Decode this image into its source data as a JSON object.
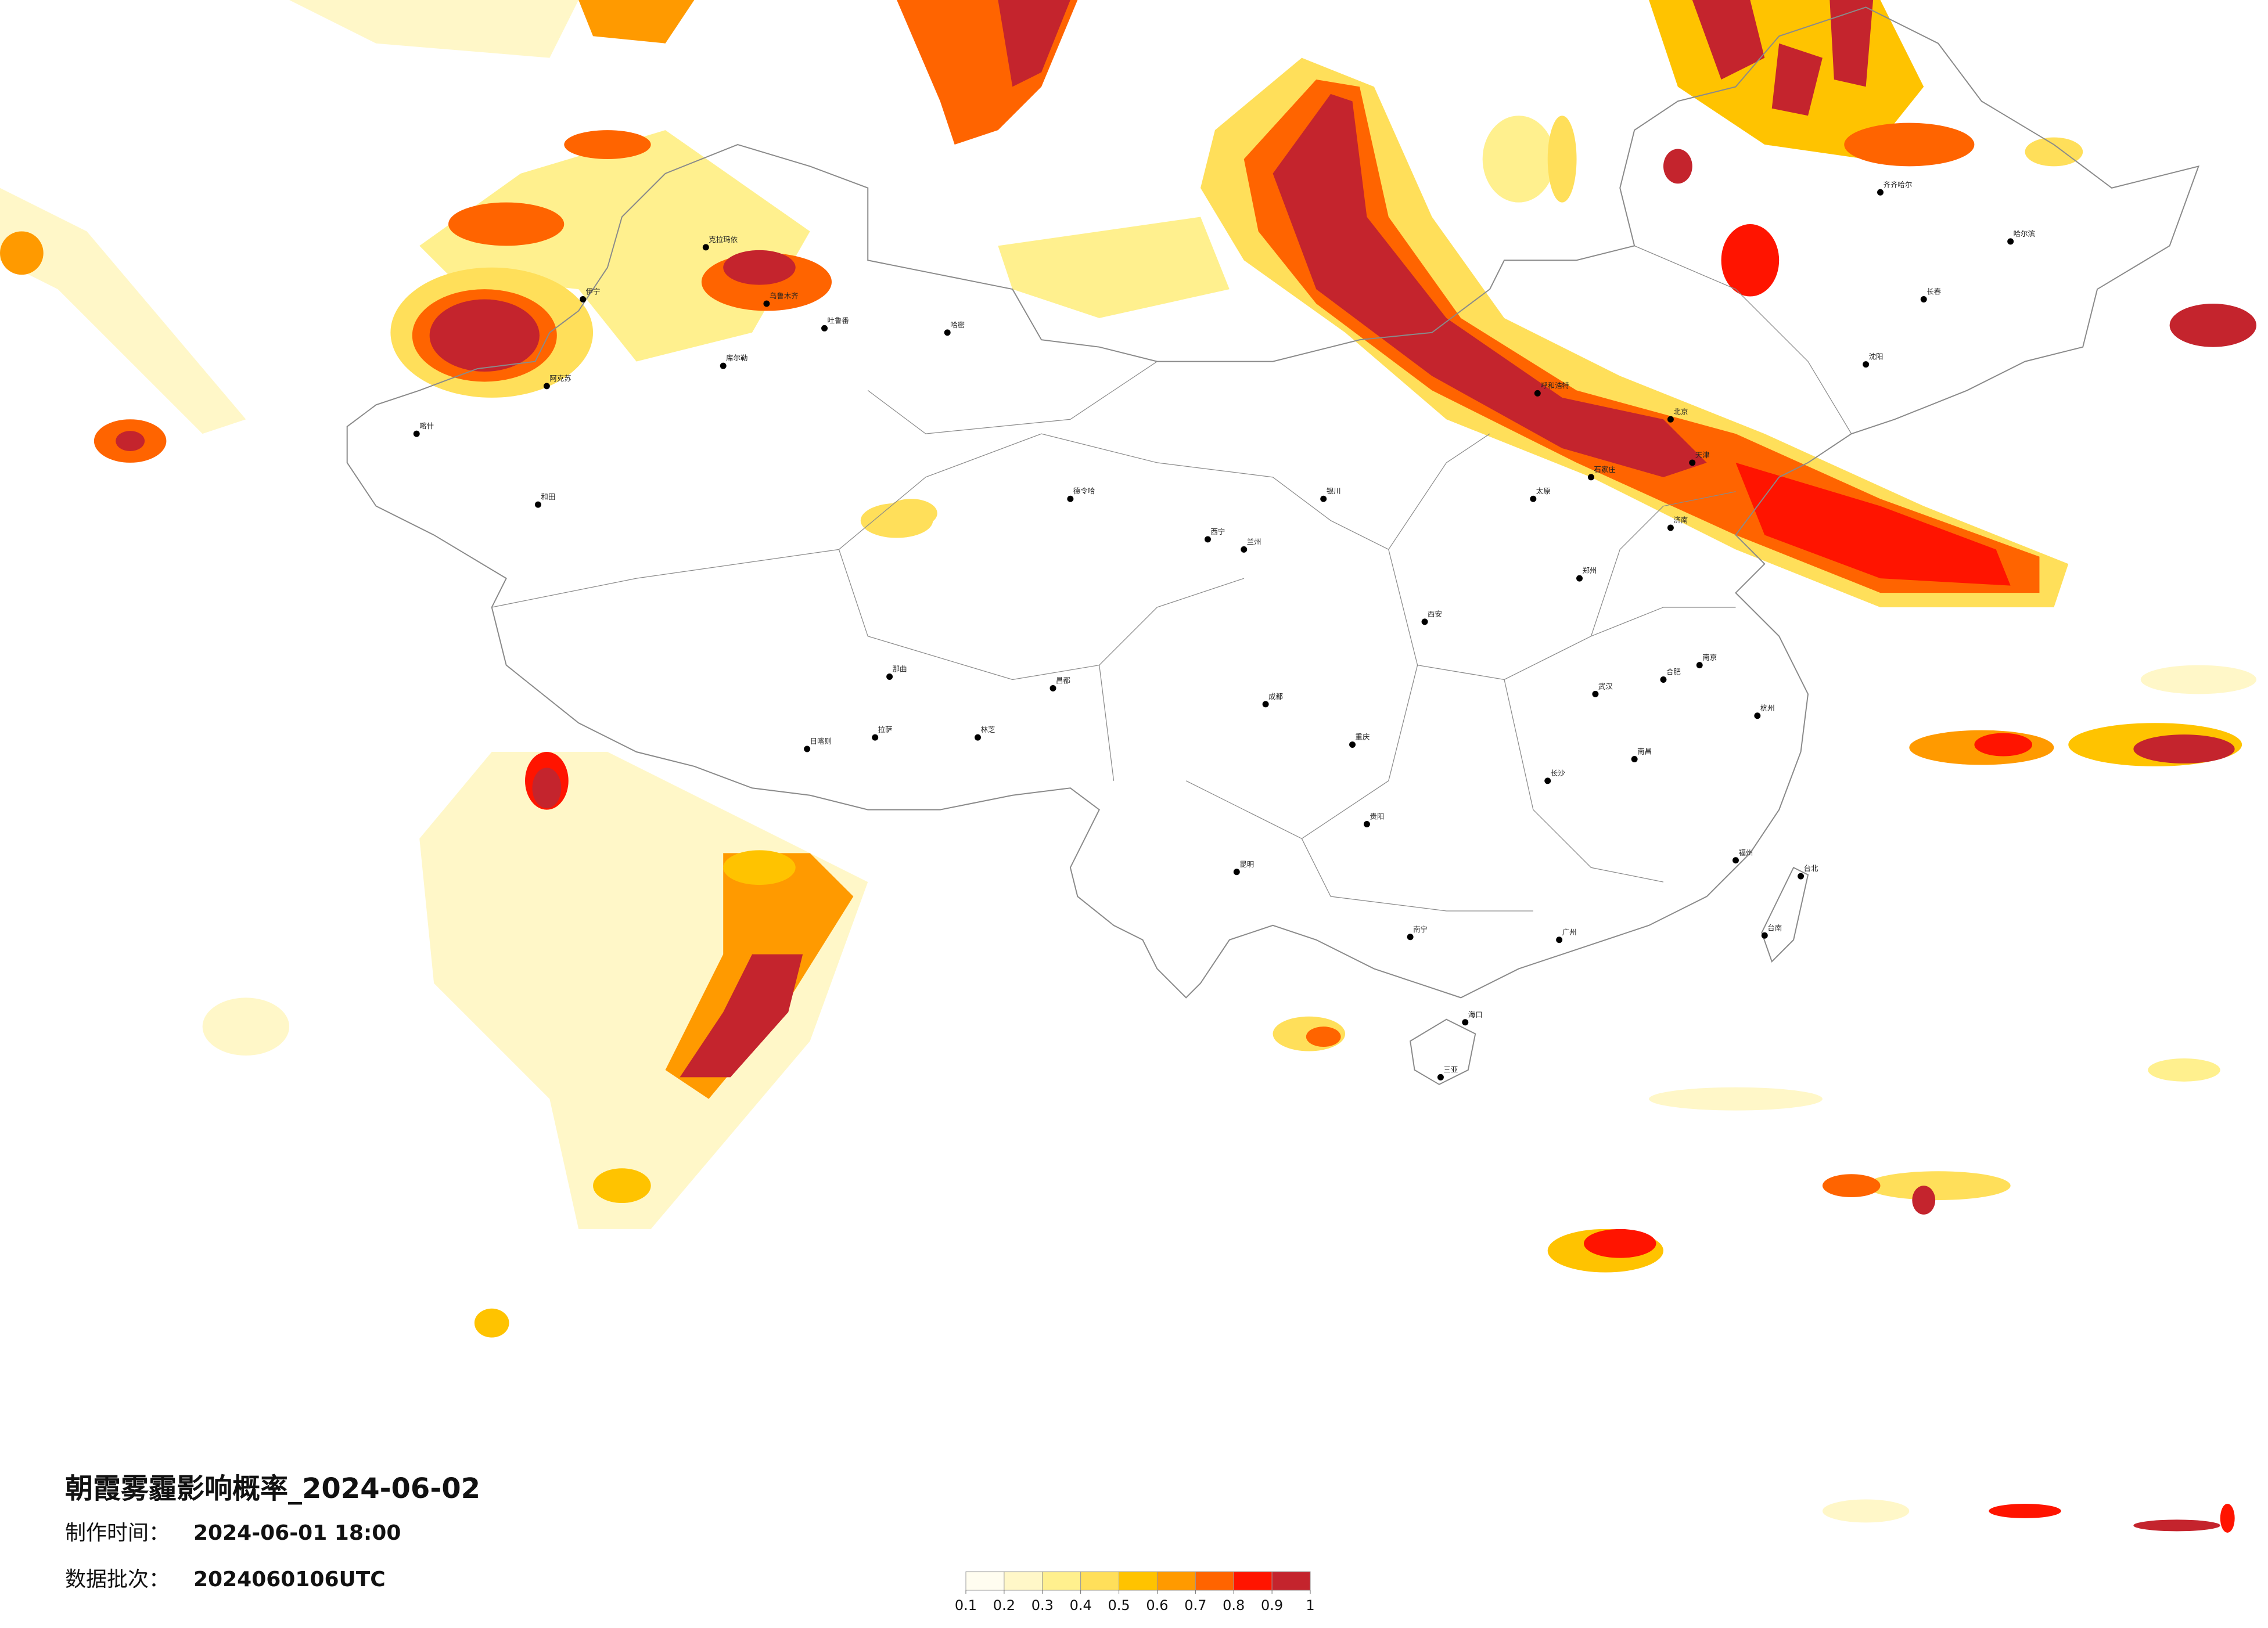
{
  "header": {
    "title": "朝霞雾霾影响概率_2024-06-02",
    "made_time_label": "制作时间：",
    "made_time": "2024-06-01 18:00",
    "batch_label": "数据批次：",
    "batch": "2024060106UTC"
  },
  "legend": {
    "colors": [
      "#fffdf0",
      "#fff7c8",
      "#fff08e",
      "#ffdf5a",
      "#ffc300",
      "#ff9a00",
      "#ff6400",
      "#ff1400",
      "#c4242d"
    ],
    "ticks": [
      0.1,
      0.2,
      0.3,
      0.4,
      0.5,
      0.6,
      0.7,
      0.8,
      0.9,
      1
    ]
  },
  "map": {
    "cities": [
      "克拉玛依",
      "乌鲁木齐",
      "吐鲁番",
      "哈密",
      "伊宁",
      "库尔勒",
      "阿克苏",
      "喀什",
      "和田",
      "那曲",
      "日喀则",
      "拉萨",
      "林芝",
      "昌都",
      "德令哈",
      "西宁",
      "兰州",
      "银川",
      "呼和浩特",
      "北京",
      "天津",
      "石家庄",
      "太原",
      "郑州",
      "济南",
      "西安",
      "成都",
      "重庆",
      "武汉",
      "长沙",
      "南昌",
      "贵阳",
      "昆明",
      "南宁",
      "广州",
      "福州",
      "杭州",
      "南京",
      "合肥",
      "沈阳",
      "长春",
      "哈尔滨",
      "齐齐哈尔",
      "海口",
      "三亚",
      "台北",
      "台南"
    ]
  }
}
